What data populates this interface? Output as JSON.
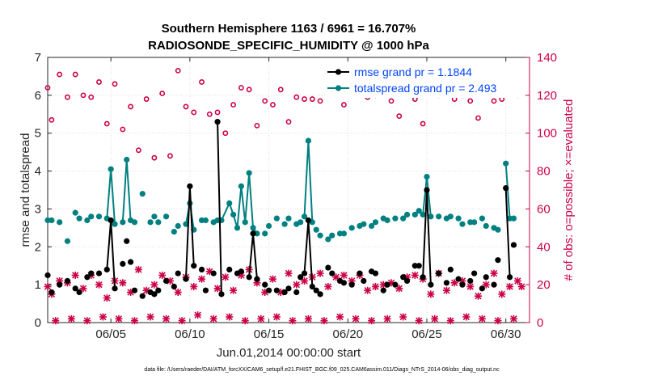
{
  "chart_data": {
    "type": "scatter",
    "title": "Southern Hemisphere 1163 / 6961 = 16.707%",
    "subtitle": "RADIOSONDE_SPECIFIC_HUMIDITY @ 1000 hPa",
    "xlabel": "Jun.01,2014 00:00:00 start",
    "ylabel": "rmse and totalspread",
    "ylabel_right": "# of obs: o=possible; ×=evaluated",
    "xlim": [
      1,
      31.5
    ],
    "ylim": [
      0,
      7
    ],
    "ylim_right": [
      0,
      140
    ],
    "x_ticks": [
      5,
      10,
      15,
      20,
      25,
      30
    ],
    "x_tick_labels": [
      "06/05",
      "06/10",
      "06/15",
      "06/20",
      "06/25",
      "06/30"
    ],
    "y_ticks": [
      0,
      1,
      2,
      3,
      4,
      5,
      6,
      7
    ],
    "y_tick_labels": [
      "0",
      "1",
      "2",
      "3",
      "4",
      "5",
      "6",
      "7"
    ],
    "y_ticks_right": [
      0,
      20,
      40,
      60,
      80,
      100,
      120,
      140
    ],
    "y_tick_labels_right": [
      "0",
      "20",
      "40",
      "60",
      "80",
      "100",
      "120",
      "140"
    ],
    "grid": true,
    "legend_position": "top-right",
    "colors": {
      "rmse": "#000000",
      "spread": "#008080",
      "obs": "#cc0044"
    },
    "series": [
      {
        "name": "rmse grand pr = 1.1844",
        "line_segments": [
          [
            4.75,
            5.0,
            5.25
          ],
          [
            9.75,
            10.0,
            10.25
          ],
          [
            11.75,
            12.0,
            12.25
          ],
          [
            13.75,
            14.0,
            14.25
          ],
          [
            17.25,
            17.5,
            17.75
          ],
          [
            24.75,
            25.0,
            25.25
          ],
          [
            29.75,
            30.0,
            30.25
          ]
        ],
        "x": [
          1.0,
          1.25,
          1.5,
          1.75,
          2.0,
          2.25,
          2.5,
          2.75,
          3.0,
          3.25,
          3.5,
          3.75,
          4.0,
          4.25,
          4.5,
          4.75,
          5.0,
          5.25,
          5.5,
          5.75,
          6.0,
          6.25,
          6.5,
          6.75,
          7.0,
          7.25,
          7.5,
          7.75,
          8.0,
          8.25,
          8.5,
          8.75,
          9.0,
          9.25,
          9.5,
          9.75,
          10.0,
          10.25,
          10.5,
          10.75,
          11.0,
          11.25,
          11.5,
          11.75,
          12.0,
          12.25,
          12.5,
          12.75,
          13.0,
          13.25,
          13.5,
          13.75,
          14.0,
          14.25,
          14.5,
          14.75,
          15.0,
          15.25,
          15.5,
          15.75,
          16.0,
          16.25,
          16.5,
          16.75,
          17.0,
          17.25,
          17.5,
          17.75,
          18.0,
          18.25,
          18.5,
          18.75,
          19.0,
          19.25,
          19.5,
          19.75,
          20.0,
          20.25,
          20.5,
          20.75,
          21.0,
          21.25,
          21.5,
          21.75,
          22.0,
          22.25,
          22.5,
          22.75,
          23.0,
          23.25,
          23.5,
          23.75,
          24.0,
          24.25,
          24.5,
          24.75,
          25.0,
          25.25,
          25.5,
          25.75,
          26.0,
          26.25,
          26.5,
          26.75,
          27.0,
          27.25,
          27.5,
          27.75,
          28.0,
          28.25,
          28.5,
          28.75,
          29.0,
          29.25,
          29.5,
          29.75,
          30.0,
          30.25,
          30.5
        ],
        "values": [
          1.25,
          0.8,
          null,
          1.0,
          null,
          1.1,
          null,
          0.9,
          0.8,
          null,
          1.2,
          1.3,
          null,
          1.3,
          null,
          1.4,
          2.7,
          0.9,
          null,
          1.55,
          2.15,
          1.6,
          0.85,
          null,
          0.7,
          null,
          0.8,
          0.75,
          0.85,
          null,
          1.1,
          null,
          0.95,
          1.3,
          null,
          1.15,
          3.6,
          1.5,
          null,
          1.4,
          0.85,
          null,
          1.3,
          5.3,
          0.75,
          null,
          1.4,
          null,
          1.3,
          1.35,
          null,
          1.2,
          2.35,
          1.15,
          null,
          1.0,
          0.85,
          null,
          0.85,
          null,
          0.8,
          0.9,
          null,
          0.8,
          1.2,
          1.3,
          2.7,
          0.95,
          0.85,
          0.75,
          null,
          1.45,
          1.3,
          null,
          1.1,
          1.05,
          null,
          1.0,
          null,
          1.3,
          1.1,
          null,
          1.35,
          1.3,
          null,
          0.85,
          1.0,
          null,
          1.0,
          null,
          1.2,
          1.1,
          null,
          1.5,
          1.5,
          1.2,
          3.5,
          1.0,
          null,
          1.3,
          null,
          1.05,
          1.4,
          null,
          1.15,
          1.0,
          null,
          1.1,
          1.3,
          null,
          0.9,
          1.2,
          null,
          1.0,
          1.65,
          null,
          3.55,
          1.2,
          2.05
        ]
      },
      {
        "name": "totalspread grand pr = 2.493",
        "line_segments": [
          [
            4.75,
            5.0,
            5.25
          ],
          [
            5.75,
            6.0,
            6.25
          ],
          [
            9.75,
            10.0,
            10.25
          ],
          [
            11.75,
            12.0,
            12.25,
            12.5,
            12.75,
            13.0,
            13.25,
            13.5,
            13.75,
            14.0,
            14.25
          ],
          [
            17.25,
            17.5,
            17.75
          ],
          [
            24.75,
            25.0,
            25.25
          ],
          [
            29.75,
            30.0,
            30.25
          ]
        ],
        "x": [
          1.0,
          1.25,
          1.5,
          1.75,
          2.0,
          2.25,
          2.5,
          2.75,
          3.0,
          3.25,
          3.5,
          3.75,
          4.0,
          4.25,
          4.5,
          4.75,
          5.0,
          5.25,
          5.5,
          5.75,
          6.0,
          6.25,
          6.5,
          6.75,
          7.0,
          7.25,
          7.5,
          7.75,
          8.0,
          8.25,
          8.5,
          8.75,
          9.0,
          9.25,
          9.5,
          9.75,
          10.0,
          10.25,
          10.5,
          10.75,
          11.0,
          11.25,
          11.5,
          11.75,
          12.0,
          12.25,
          12.5,
          12.75,
          13.0,
          13.25,
          13.5,
          13.75,
          14.0,
          14.25,
          14.5,
          14.75,
          15.0,
          15.25,
          15.5,
          15.75,
          16.0,
          16.25,
          16.5,
          16.75,
          17.0,
          17.25,
          17.5,
          17.75,
          18.0,
          18.25,
          18.5,
          18.75,
          19.0,
          19.25,
          19.5,
          19.75,
          20.0,
          20.25,
          20.5,
          20.75,
          21.0,
          21.25,
          21.5,
          21.75,
          22.0,
          22.25,
          22.5,
          22.75,
          23.0,
          23.25,
          23.5,
          23.75,
          24.0,
          24.25,
          24.5,
          24.75,
          25.0,
          25.25,
          25.5,
          25.75,
          26.0,
          26.25,
          26.5,
          26.75,
          27.0,
          27.25,
          27.5,
          27.75,
          28.0,
          28.25,
          28.5,
          28.75,
          29.0,
          29.25,
          29.5,
          29.75,
          30.0,
          30.25,
          30.5
        ],
        "values": [
          2.7,
          2.7,
          null,
          2.65,
          null,
          2.15,
          null,
          2.9,
          2.75,
          null,
          2.7,
          2.8,
          null,
          2.8,
          null,
          2.75,
          4.05,
          2.6,
          null,
          2.65,
          4.3,
          2.7,
          2.65,
          null,
          3.4,
          null,
          2.65,
          2.8,
          2.65,
          null,
          2.8,
          null,
          2.4,
          2.55,
          null,
          2.6,
          3.15,
          2.45,
          null,
          2.7,
          2.7,
          null,
          2.65,
          2.7,
          2.7,
          null,
          3.15,
          2.85,
          2.5,
          3.6,
          2.65,
          3.95,
          2.5,
          2.35,
          null,
          2.35,
          2.55,
          null,
          2.75,
          null,
          2.6,
          2.75,
          null,
          2.6,
          2.65,
          2.8,
          4.8,
          2.65,
          2.45,
          2.3,
          null,
          2.2,
          2.3,
          null,
          2.35,
          2.35,
          null,
          2.5,
          null,
          2.55,
          2.6,
          null,
          2.55,
          2.65,
          null,
          2.75,
          2.7,
          null,
          2.75,
          null,
          2.75,
          2.85,
          null,
          2.85,
          2.95,
          2.85,
          3.85,
          2.8,
          null,
          2.8,
          null,
          2.75,
          2.8,
          null,
          2.75,
          2.6,
          null,
          2.65,
          2.65,
          null,
          2.75,
          2.55,
          null,
          2.5,
          2.45,
          null,
          4.2,
          2.75,
          2.75
        ]
      },
      {
        "name": "possible",
        "axis": "right",
        "marker": "o",
        "x": [
          1.0,
          1.25,
          1.75,
          2.25,
          2.75,
          3.25,
          3.75,
          4.25,
          4.75,
          5.25,
          5.75,
          6.25,
          6.75,
          7.25,
          7.75,
          8.25,
          8.75,
          9.25,
          9.75,
          10.25,
          10.75,
          11.25,
          11.75,
          12.25,
          12.75,
          13.25,
          13.75,
          14.25,
          14.75,
          15.25,
          15.75,
          16.25,
          16.75,
          17.25,
          17.75,
          18.25,
          18.75,
          19.25,
          19.75,
          20.25,
          20.75,
          21.25,
          21.75,
          22.25,
          22.75,
          23.25,
          23.75,
          24.25,
          24.75,
          25.25,
          25.75,
          26.25,
          26.75,
          27.25,
          27.75,
          28.25,
          28.75,
          29.25,
          29.75,
          30.25,
          30.75,
          31.0
        ],
        "values": [
          124,
          107,
          131,
          119,
          131,
          120,
          119,
          127,
          105,
          126,
          102,
          114,
          91,
          118,
          87,
          121,
          88,
          133,
          114,
          111,
          127,
          110,
          111,
          100,
          115,
          124,
          123,
          104,
          117,
          115,
          123,
          106,
          119,
          118,
          118,
          117,
          121,
          123,
          115,
          126,
          122,
          119,
          120,
          122,
          117,
          109,
          126,
          118,
          105,
          132,
          120,
          125,
          118,
          120,
          117,
          108,
          124,
          117,
          118,
          122,
          120,
          128
        ]
      },
      {
        "name": "evaluated",
        "axis": "right",
        "marker": "x",
        "x": [
          1.0,
          1.25,
          1.75,
          2.25,
          2.75,
          3.25,
          3.75,
          4.25,
          4.75,
          5.25,
          5.75,
          6.25,
          6.75,
          7.25,
          7.75,
          8.25,
          8.75,
          9.25,
          9.75,
          10.25,
          10.75,
          11.25,
          11.75,
          12.25,
          12.75,
          13.25,
          13.75,
          14.25,
          14.75,
          15.25,
          15.75,
          16.25,
          16.75,
          17.25,
          17.75,
          18.25,
          18.75,
          19.25,
          19.75,
          20.25,
          20.75,
          21.25,
          21.75,
          22.25,
          22.75,
          23.25,
          23.75,
          24.25,
          24.75,
          25.25,
          25.75,
          26.25,
          26.75,
          27.25,
          27.75,
          28.25,
          28.75,
          29.25,
          29.75,
          30.25,
          30.75,
          31.0
        ],
        "values": [
          19,
          15,
          22,
          21,
          25,
          18,
          25,
          20,
          13,
          22,
          21,
          16,
          28,
          17,
          20,
          25,
          22,
          16,
          24,
          19,
          23,
          27,
          18,
          24,
          17,
          25,
          28,
          21,
          16,
          23,
          16,
          26,
          20,
          22,
          24,
          26,
          19,
          24,
          25,
          22,
          25,
          17,
          19,
          20,
          21,
          18,
          24,
          25,
          23,
          15,
          26,
          17,
          21,
          22,
          19,
          14,
          20,
          26,
          15,
          19,
          22,
          19
        ]
      },
      {
        "name": "evaluated-low",
        "axis": "right",
        "marker": "x",
        "x": [
          1.5,
          2.5,
          3.5,
          4.5,
          5.5,
          6.5,
          7.5,
          8.5,
          9.5,
          10.5,
          11.5,
          12.5,
          13.5,
          14.5,
          15.5,
          16.5,
          17.5,
          18.5,
          19.5,
          20.5,
          21.5,
          22.5,
          23.5,
          24.5,
          25.5,
          26.5,
          27.5,
          28.5,
          29.5,
          30.5
        ],
        "values": [
          1,
          2,
          1,
          3,
          2,
          1,
          3,
          2,
          1,
          4,
          2,
          3,
          1,
          2,
          3,
          1,
          2,
          1,
          3,
          2,
          1,
          2,
          3,
          1,
          2,
          1,
          3,
          2,
          1,
          2
        ]
      }
    ]
  },
  "footer": {
    "text": "data file: /Users/raeder/DAI/ATM_forcXX/CAM6_setup/f.e21.FHIST_BGC.f09_025.CAM6assim.011/Diags_NTrS_2014-06/obs_diag_output.nc"
  }
}
